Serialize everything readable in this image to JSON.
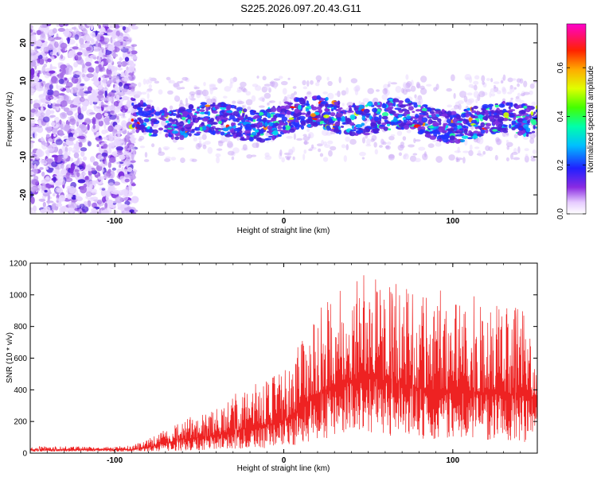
{
  "title": "S225.2026.097.20.43.G11",
  "chart_data": [
    {
      "type": "heatmap",
      "title": "S225.2026.097.20.43.G11",
      "xlabel": "Height of straight line (km)",
      "ylabel": "Frequency (Hz)",
      "xlim": [
        -150,
        150
      ],
      "ylim": [
        -25,
        25
      ],
      "x_ticks": [
        -100,
        0,
        100
      ],
      "y_ticks": [
        -20,
        -10,
        0,
        10,
        20
      ],
      "colorbar": {
        "label": "Normalized spectral amplitude",
        "range": [
          0.0,
          0.78
        ],
        "ticks": [
          "0.0",
          "0.2",
          "0.4",
          "0.6"
        ],
        "tick_values": [
          0.0,
          0.2,
          0.4,
          0.6
        ]
      },
      "noise_region_x": [
        -150,
        -88
      ],
      "signal_band_center_hz": 0,
      "signal_band_halfwidth_hz": 4
    },
    {
      "type": "line",
      "xlabel": "Height of straight line (km)",
      "ylabel": "SNR (10 * v/v)",
      "xlim": [
        -150,
        150
      ],
      "ylim": [
        0,
        1200
      ],
      "x_ticks": [
        -100,
        0,
        100
      ],
      "y_ticks": [
        0,
        200,
        400,
        600,
        800,
        1000,
        1200
      ],
      "series": [
        {
          "name": "SNR",
          "color": "#ee2222",
          "envelope_x": [
            -150,
            -90,
            -80,
            -60,
            -40,
            -20,
            0,
            10,
            20,
            30,
            50,
            80,
            110,
            150
          ],
          "envelope_max": [
            40,
            45,
            90,
            220,
            280,
            420,
            520,
            700,
            900,
            1050,
            1150,
            1000,
            950,
            900
          ],
          "envelope_min": [
            10,
            10,
            10,
            15,
            20,
            25,
            30,
            60,
            80,
            100,
            120,
            90,
            90,
            60
          ]
        }
      ]
    }
  ]
}
